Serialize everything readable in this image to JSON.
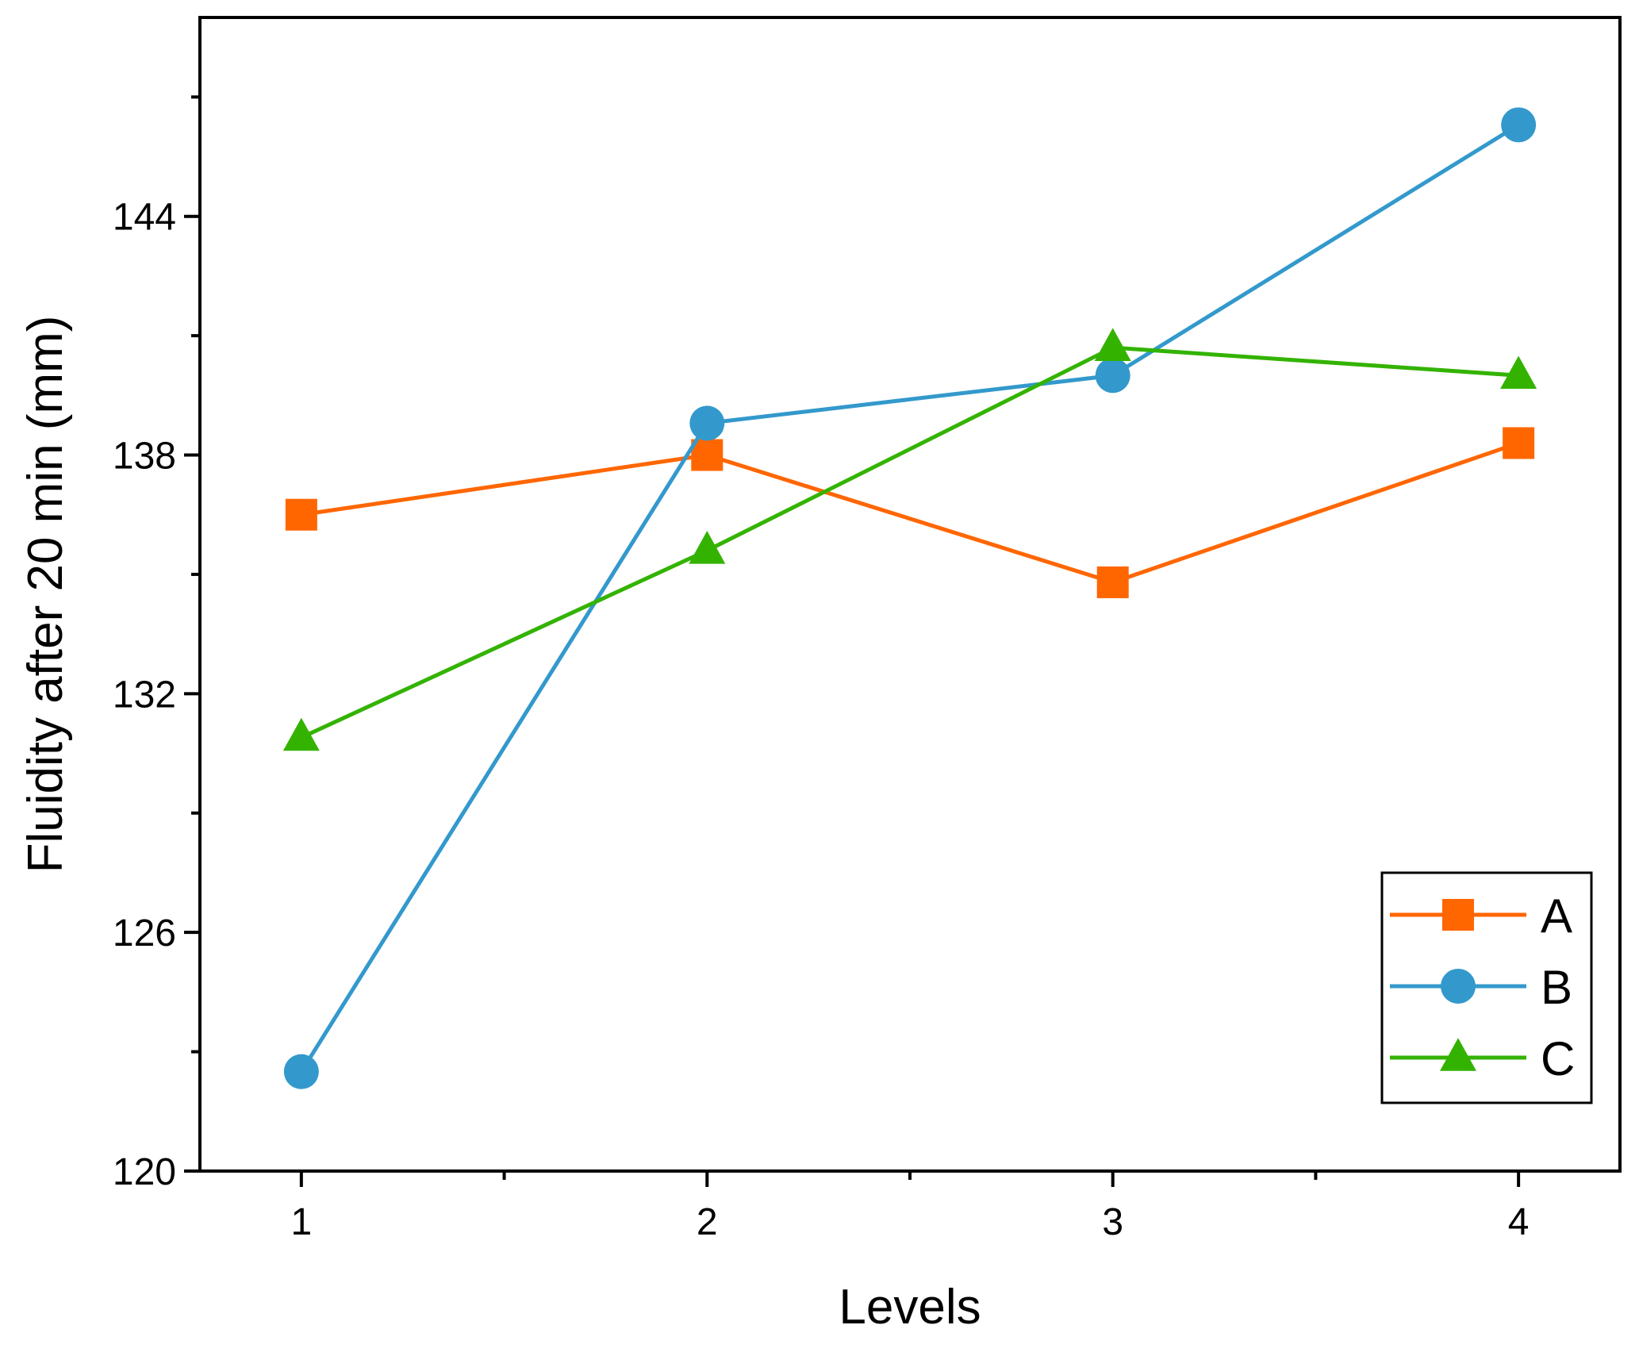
{
  "chart_data": {
    "type": "line",
    "title": "",
    "xlabel": "Levels",
    "ylabel": "Fluidity after 20 min (mm)",
    "categories": [
      "1",
      "2",
      "3",
      "4"
    ],
    "x": [
      1,
      2,
      3,
      4
    ],
    "xlim": [
      0.75,
      4.25
    ],
    "ylim": [
      120,
      149
    ],
    "yticks": [
      120,
      126,
      132,
      138,
      144
    ],
    "ytick_labels": [
      "120",
      "126",
      "132",
      "138",
      "144"
    ],
    "xtick_labels": [
      "1",
      "2",
      "3",
      "4"
    ],
    "grid": false,
    "legend_position": "bottom-right",
    "series": [
      {
        "name": "A",
        "marker": "square",
        "color": "#ff6600",
        "values": [
          136.5,
          138.0,
          134.8,
          138.3
        ]
      },
      {
        "name": "B",
        "marker": "circle",
        "color": "#3399cc",
        "values": [
          122.5,
          138.8,
          140.0,
          146.3
        ]
      },
      {
        "name": "C",
        "marker": "triangle",
        "color": "#33b300",
        "values": [
          130.9,
          135.6,
          140.7,
          140.0
        ]
      }
    ]
  }
}
